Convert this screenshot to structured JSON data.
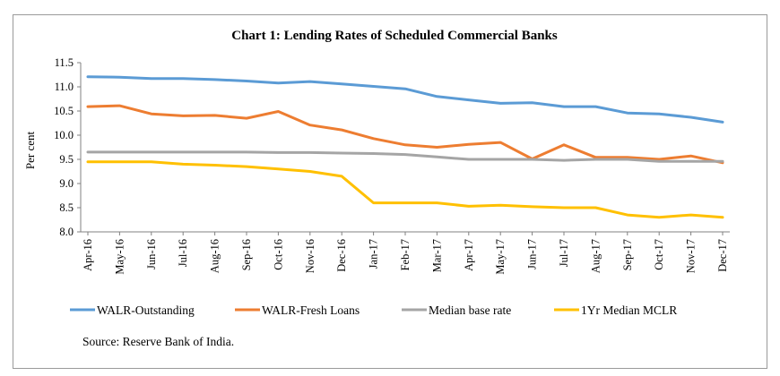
{
  "chart_data": {
    "type": "line",
    "title": "Chart 1: Lending Rates of Scheduled Commercial Banks",
    "ylabel": "Per cent",
    "xlabel": "",
    "ylim": [
      8.0,
      11.5
    ],
    "yticks": [
      "8.0",
      "8.5",
      "9.0",
      "9.5",
      "10.0",
      "10.5",
      "11.0",
      "11.5"
    ],
    "grid": false,
    "legend_position": "bottom",
    "categories": [
      "Apr-16",
      "May-16",
      "Jun-16",
      "Jul-16",
      "Aug-16",
      "Sep-16",
      "Oct-16",
      "Nov-16",
      "Dec-16",
      "Jan-17",
      "Feb-17",
      "Mar-17",
      "Apr-17",
      "May-17",
      "Jun-17",
      "Jul-17",
      "Aug-17",
      "Sep-17",
      "Oct-17",
      "Nov-17",
      "Dec-17"
    ],
    "series": [
      {
        "name": "WALR-Outstanding",
        "color": "#5b9bd5",
        "values": [
          11.21,
          11.2,
          11.17,
          11.17,
          11.15,
          11.12,
          11.08,
          11.11,
          11.06,
          11.01,
          10.96,
          10.8,
          10.73,
          10.66,
          10.67,
          10.59,
          10.59,
          10.46,
          10.44,
          10.37,
          10.27
        ]
      },
      {
        "name": "WALR-Fresh Loans",
        "color": "#ed7d31",
        "values": [
          10.59,
          10.61,
          10.44,
          10.4,
          10.41,
          10.35,
          10.49,
          10.21,
          10.11,
          9.93,
          9.8,
          9.75,
          9.81,
          9.85,
          9.51,
          9.8,
          9.54,
          9.54,
          9.5,
          9.57,
          9.43
        ]
      },
      {
        "name": "Median base rate",
        "color": "#a5a5a5",
        "values": [
          9.65,
          9.65,
          9.65,
          9.65,
          9.65,
          9.65,
          9.64,
          9.64,
          9.63,
          9.62,
          9.6,
          9.55,
          9.5,
          9.5,
          9.5,
          9.48,
          9.5,
          9.5,
          9.46,
          9.46,
          9.46
        ]
      },
      {
        "name": "1Yr Median MCLR",
        "color": "#ffc000",
        "values": [
          9.45,
          9.45,
          9.45,
          9.4,
          9.38,
          9.35,
          9.3,
          9.25,
          9.15,
          8.6,
          8.6,
          8.6,
          8.53,
          8.55,
          8.52,
          8.5,
          8.5,
          8.35,
          8.3,
          8.35,
          8.3
        ]
      }
    ],
    "source": "Source: Reserve Bank of India."
  }
}
